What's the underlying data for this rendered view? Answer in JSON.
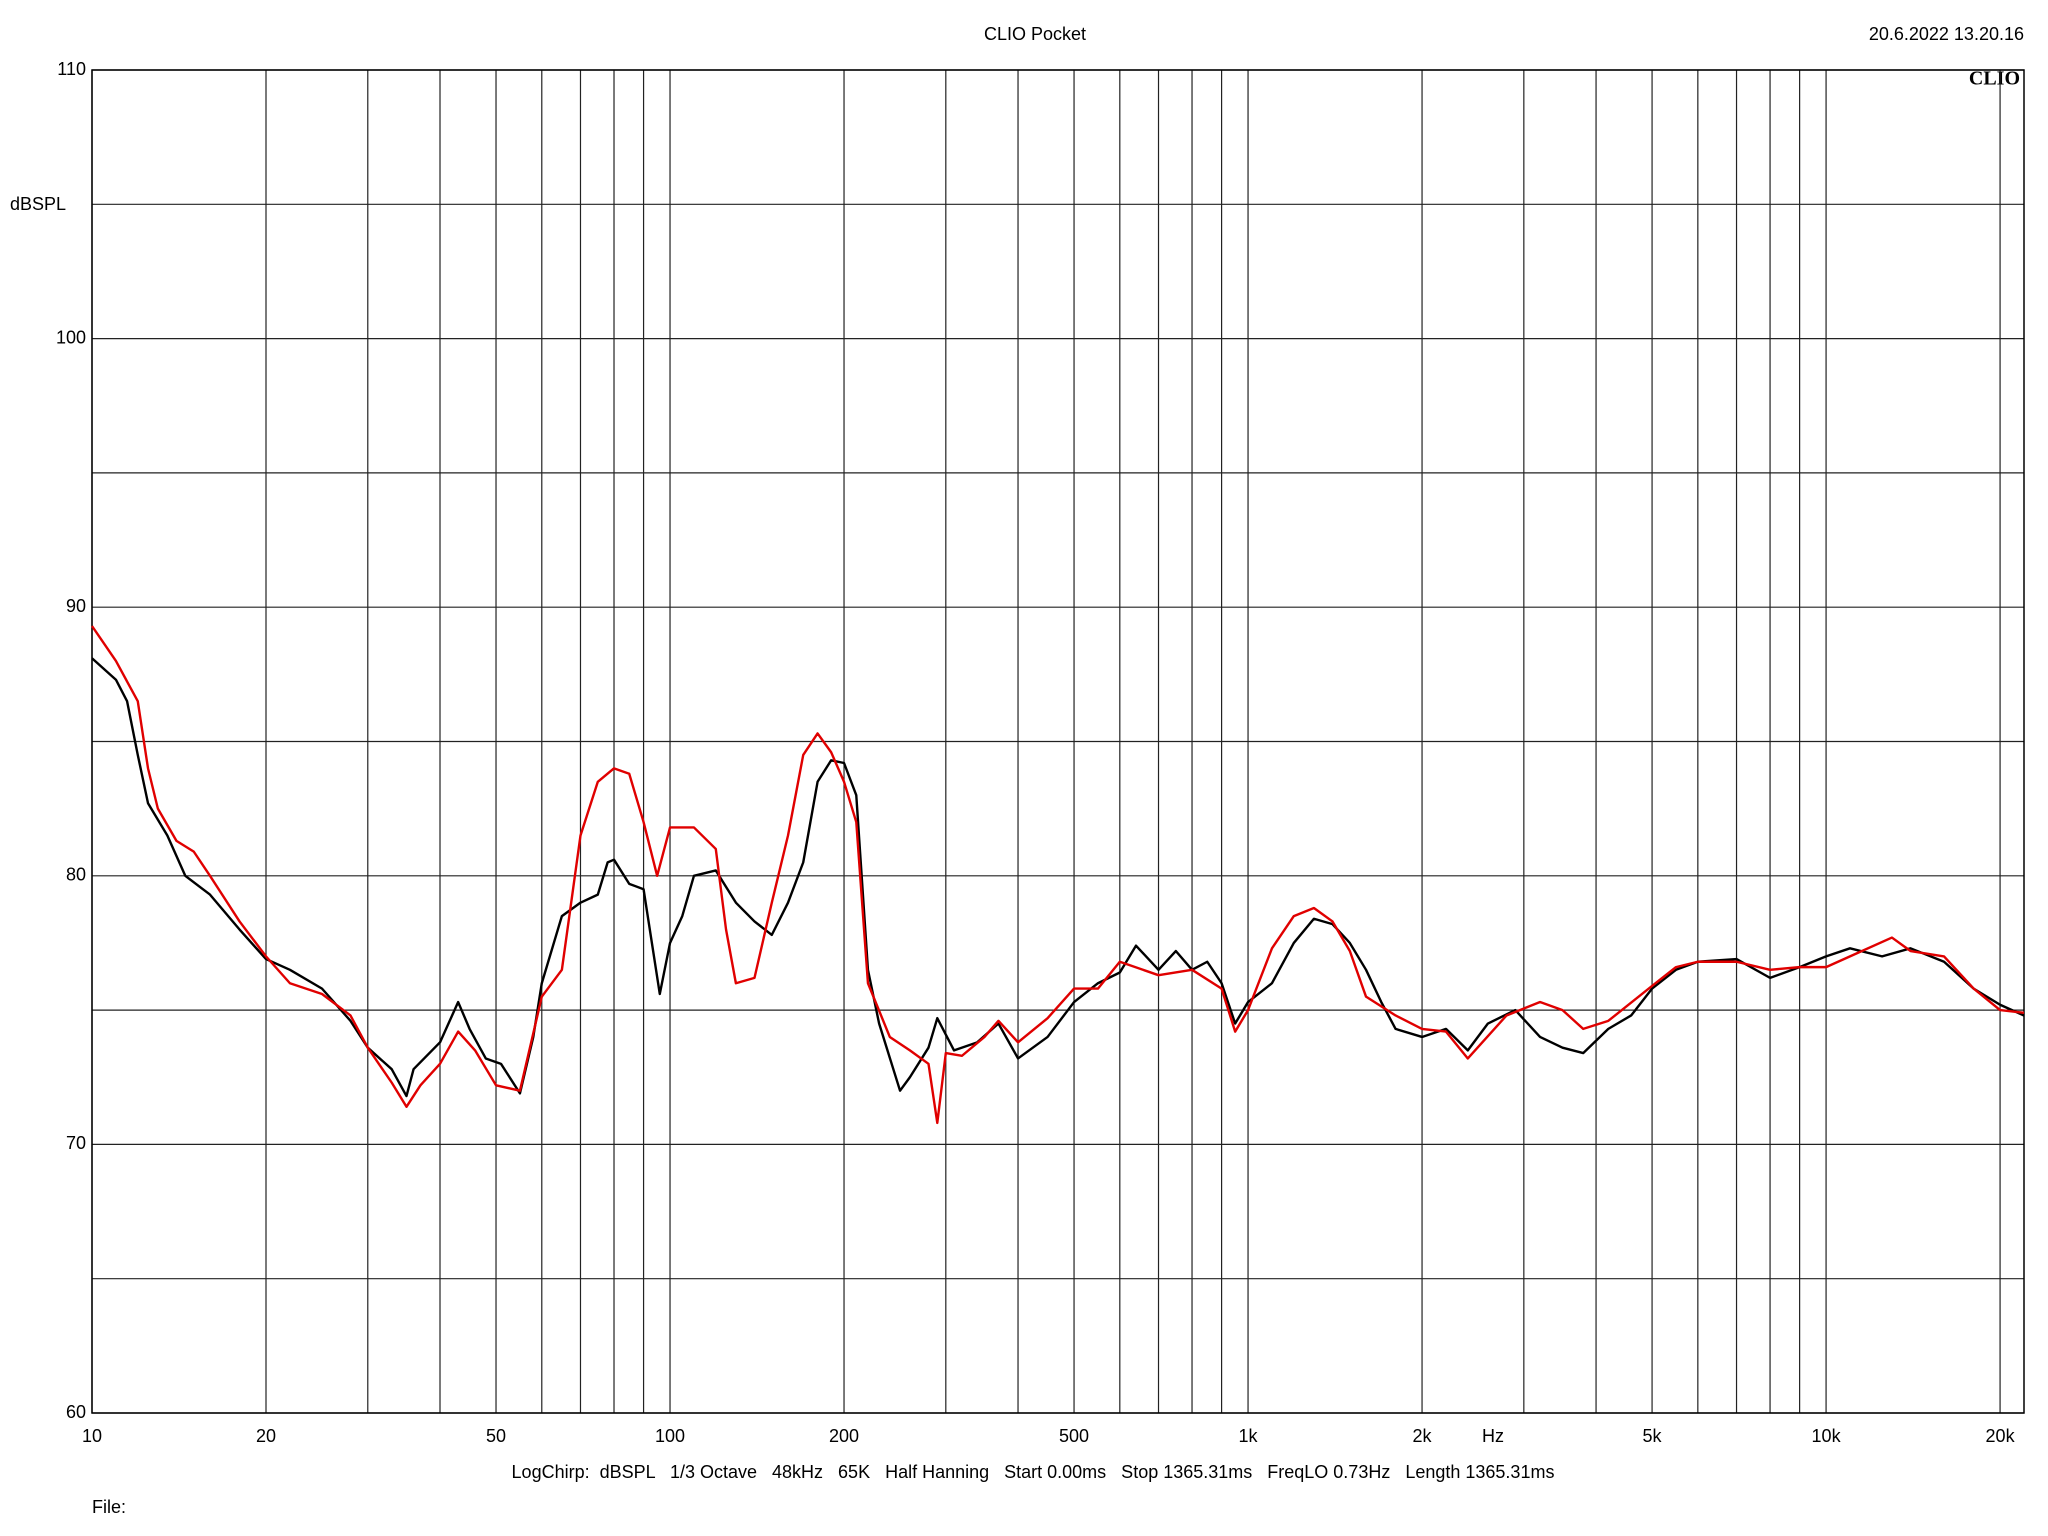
{
  "chart_data": {
    "type": "line",
    "title": "CLIO Pocket",
    "timestamp": "20.6.2022 13.20.16",
    "logo": "CLIO",
    "y_label": "dBSPL",
    "x_label": "Hz",
    "footer": "LogChirp:  dBSPL   1/3 Octave   48kHz   65K   Half Hanning   Start 0.00ms   Stop 1365.31ms   FreqLO 0.73Hz   Length 1365.31ms",
    "file_label": "File:",
    "x_log": true,
    "grid": true,
    "xlim": [
      10,
      22000
    ],
    "ylim": [
      60,
      110
    ],
    "xticks": [
      10,
      20,
      50,
      100,
      200,
      500,
      {
        "value": 1000,
        "label": "1k"
      },
      {
        "value": 2000,
        "label": "2k"
      },
      {
        "value": 5000,
        "label": "5k"
      },
      {
        "value": 10000,
        "label": "10k"
      },
      {
        "value": 20000,
        "label": "20k"
      }
    ],
    "xminor": [
      30,
      40,
      60,
      70,
      80,
      90,
      300,
      400,
      600,
      700,
      800,
      900,
      3000,
      4000,
      6000,
      7000,
      8000,
      9000
    ],
    "yticks": [
      60,
      70,
      80,
      90,
      100,
      110
    ],
    "yminor": [
      65,
      75,
      85,
      95,
      105
    ],
    "series": [
      {
        "color": "#000000",
        "x": [
          10,
          11,
          11.5,
          12,
          12.5,
          13.5,
          14.5,
          16,
          18,
          20,
          22,
          25,
          28,
          30,
          33,
          35,
          36,
          40,
          43,
          45,
          48,
          51,
          55,
          58,
          60,
          65,
          70,
          75,
          78,
          80,
          85,
          90,
          96,
          100,
          105,
          110,
          120,
          130,
          140,
          150,
          160,
          170,
          180,
          190,
          200,
          210,
          220,
          230,
          250,
          260,
          280,
          290,
          310,
          340,
          370,
          400,
          450,
          500,
          550,
          600,
          640,
          700,
          750,
          800,
          850,
          900,
          950,
          1000,
          1100,
          1200,
          1300,
          1400,
          1500,
          1600,
          1700,
          1800,
          2000,
          2200,
          2400,
          2600,
          2900,
          3200,
          3500,
          3800,
          4200,
          4600,
          5000,
          5500,
          6000,
          7000,
          8000,
          9000,
          10000,
          11000,
          12500,
          14000,
          16000,
          18000,
          20000,
          22000
        ],
        "values": [
          88.1,
          87.3,
          86.5,
          84.5,
          82.7,
          81.5,
          80.0,
          79.3,
          78.0,
          76.9,
          76.5,
          75.8,
          74.6,
          73.6,
          72.8,
          71.8,
          72.8,
          73.8,
          75.3,
          74.3,
          73.2,
          73.0,
          71.9,
          74.0,
          76.0,
          78.5,
          79.0,
          79.3,
          80.5,
          80.6,
          79.7,
          79.5,
          75.6,
          77.5,
          78.5,
          80.0,
          80.2,
          79.0,
          78.3,
          77.8,
          79.0,
          80.5,
          83.5,
          84.3,
          84.2,
          83.0,
          76.5,
          74.5,
          72.0,
          72.5,
          73.6,
          74.7,
          73.5,
          73.8,
          74.5,
          73.2,
          74.0,
          75.3,
          76.0,
          76.4,
          77.4,
          76.5,
          77.2,
          76.5,
          76.8,
          76.0,
          74.5,
          75.3,
          76.0,
          77.5,
          78.4,
          78.2,
          77.5,
          76.5,
          75.3,
          74.3,
          74.0,
          74.3,
          73.5,
          74.5,
          75.0,
          74.0,
          73.6,
          73.4,
          74.3,
          74.8,
          75.8,
          76.5,
          76.8,
          76.9,
          76.2,
          76.6,
          77.0,
          77.3,
          77.0,
          77.3,
          76.8,
          75.8,
          75.2,
          74.8
        ]
      },
      {
        "color": "#e00000",
        "x": [
          10,
          11,
          12,
          12.5,
          13,
          14,
          15,
          16,
          18,
          20,
          22,
          25,
          28,
          30,
          33,
          35,
          37,
          40,
          43,
          46,
          50,
          55,
          60,
          65,
          70,
          75,
          80,
          85,
          90,
          95,
          100,
          110,
          120,
          125,
          130,
          140,
          150,
          160,
          170,
          180,
          190,
          200,
          210,
          220,
          240,
          260,
          280,
          290,
          300,
          320,
          350,
          370,
          400,
          450,
          500,
          550,
          600,
          700,
          800,
          900,
          950,
          1000,
          1100,
          1200,
          1300,
          1400,
          1500,
          1600,
          1800,
          2000,
          2200,
          2400,
          2800,
          3200,
          3500,
          3800,
          4200,
          5000,
          5500,
          6000,
          7000,
          8000,
          9000,
          10000,
          11000,
          13000,
          14000,
          16000,
          18000,
          20000,
          22000
        ],
        "values": [
          89.3,
          88.0,
          86.5,
          84.0,
          82.5,
          81.3,
          80.9,
          80.0,
          78.3,
          77.0,
          76.0,
          75.6,
          74.8,
          73.6,
          72.3,
          71.4,
          72.2,
          73.0,
          74.2,
          73.5,
          72.2,
          72.0,
          75.5,
          76.5,
          81.5,
          83.5,
          84.0,
          83.8,
          82.0,
          80.0,
          81.8,
          81.8,
          81.0,
          78.0,
          76.0,
          76.2,
          79.0,
          81.5,
          84.5,
          85.3,
          84.6,
          83.5,
          82.0,
          76.0,
          74.0,
          73.5,
          73.0,
          70.8,
          73.4,
          73.3,
          74.0,
          74.6,
          73.8,
          74.7,
          75.8,
          75.8,
          76.8,
          76.3,
          76.5,
          75.8,
          74.2,
          75.0,
          77.3,
          78.5,
          78.8,
          78.3,
          77.2,
          75.5,
          74.8,
          74.3,
          74.2,
          73.2,
          74.8,
          75.3,
          75.0,
          74.3,
          74.6,
          75.9,
          76.6,
          76.8,
          76.8,
          76.5,
          76.6,
          76.6,
          77.0,
          77.7,
          77.2,
          77.0,
          75.8,
          75.0,
          74.9
        ]
      }
    ]
  }
}
